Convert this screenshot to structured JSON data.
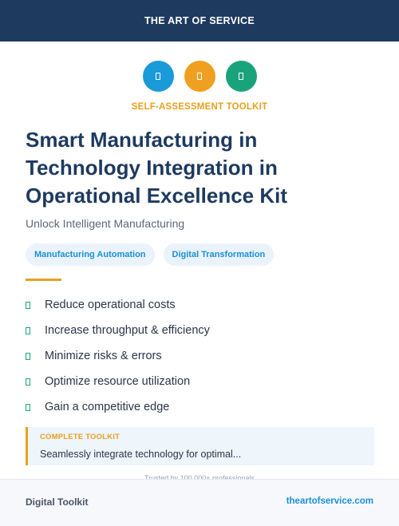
{
  "header": {
    "brand": "THE ART OF SERVICE",
    "background_color": "#1e3a5f"
  },
  "icons": [
    {
      "name": "document-icon",
      "color": "#1a9ad8"
    },
    {
      "name": "document-icon",
      "color": "#f0a020"
    },
    {
      "name": "document-icon",
      "color": "#1aa37a"
    }
  ],
  "eyebrow": {
    "text": "SELF-ASSESSMENT TOOLKIT",
    "color": "#e8a020"
  },
  "title": {
    "lines": [
      "Smart Manufacturing in",
      "Technology Integration in",
      "Operational Excellence Kit"
    ]
  },
  "subtitle": "Unlock Intelligent Manufacturing",
  "tags": [
    {
      "label": "Manufacturing Automation",
      "color": "#1a8fd6"
    },
    {
      "label": "Digital Transformation",
      "color": "#1a8fd6"
    }
  ],
  "benefits": [
    "Reduce operational costs",
    "Increase throughput & efficiency",
    "Minimize risks & errors",
    "Optimize resource utilization",
    "Gain a competitive edge"
  ],
  "toolkit": {
    "label": "COMPLETE TOOLKIT",
    "description": "Seamlessly integrate technology for optimal..."
  },
  "trust_text": "Trusted by 100,000+ professionals",
  "footer": {
    "left": "Digital Toolkit",
    "right": "theartofservice.com"
  }
}
